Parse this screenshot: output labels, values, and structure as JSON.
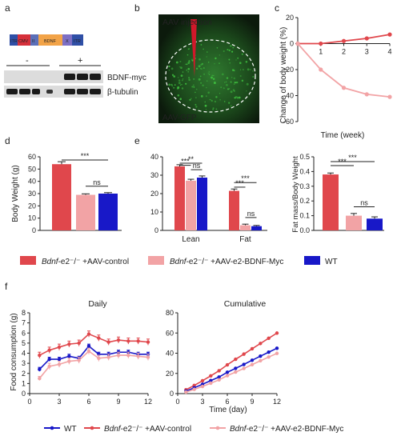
{
  "panel_labels": {
    "a": "a",
    "b": "b",
    "c": "c",
    "d": "d",
    "e": "e",
    "f": "f"
  },
  "colors": {
    "control": "#e0474c",
    "e2bdnf": "#f2a3a5",
    "wt": "#1818c8",
    "text": "#222222",
    "micro_bg": "#0c1a0c",
    "micro_cell": "#3fbf3f",
    "micro_needle": "#d0182a",
    "itr": "#2f4fa6",
    "cmv": "#d6303a",
    "ii": "#5b6fb8",
    "bdnf": "#f2a347",
    "x": "#7d6fc4",
    "blot_band": "#1a1a1a"
  },
  "panel_a": {
    "construct": [
      "ITR",
      "CMV",
      "II",
      "BDNF",
      "X",
      "ITR"
    ],
    "lane_minus": "-",
    "lane_plus": "+",
    "blot_labels": [
      "BDNF-myc",
      "β-tubulin"
    ]
  },
  "panel_b": {
    "injection_label": "AAV injection",
    "gfp_label": "AAV-GFP"
  },
  "legend": {
    "control_gene": "Bdnf",
    "control_rest": "-e2⁻/⁻ +AAV-control",
    "e2_gene": "Bdnf",
    "e2_rest": "-e2⁻/⁻ +AAV-e2-BDNF-Myc",
    "wt": "WT"
  },
  "legend_f": {
    "wt": "WT",
    "control_gene": "Bdnf",
    "control_rest": "-e2⁻/⁻ +AAV-control",
    "e2_gene": "Bdnf",
    "e2_rest": "-e2⁻/⁻ +AAV-e2-BDNF-Myc"
  },
  "chart_data": [
    {
      "panel": "c",
      "type": "line",
      "xlabel": "Time (week)",
      "ylabel": "Change of body weight (%)",
      "xlim": [
        0,
        4
      ],
      "ylim": [
        -60,
        20
      ],
      "xticks": [
        1,
        2,
        3,
        4
      ],
      "yticks": [
        20,
        0,
        -20,
        -40,
        -60
      ],
      "x": [
        0,
        1,
        2,
        3,
        4
      ],
      "series": [
        {
          "key": "control",
          "values": [
            0,
            0,
            2,
            4,
            7
          ]
        },
        {
          "key": "e2bdnf",
          "values": [
            0,
            -20,
            -34,
            -39,
            -41
          ]
        }
      ]
    },
    {
      "panel": "d",
      "type": "bar",
      "ylabel": "Body Weight (g)",
      "ylim": [
        0,
        60
      ],
      "yticks": [
        0,
        10,
        20,
        30,
        40,
        50,
        60
      ],
      "categories": [
        "Bdnf-e2-/- +AAV-control",
        "Bdnf-e2-/- +AAV-e2-BDNF-Myc",
        "WT"
      ],
      "values": [
        54,
        29,
        30
      ],
      "errors": [
        2,
        0.8,
        0.8
      ],
      "significance": [
        {
          "a": 0,
          "b": 2,
          "text": "***"
        },
        {
          "a": 1,
          "b": 2,
          "text": "ns"
        }
      ]
    },
    {
      "panel": "e-left",
      "type": "bar",
      "ylim": [
        0,
        40
      ],
      "yticks": [
        0,
        10,
        20,
        30,
        40
      ],
      "categories": [
        "Lean",
        "Fat"
      ],
      "series": [
        {
          "key": "control",
          "values": [
            34.8,
            21.5
          ],
          "errors": [
            0.9,
            1.0
          ]
        },
        {
          "key": "e2bdnf",
          "values": [
            27,
            2.8
          ],
          "errors": [
            0.8,
            0.6
          ]
        },
        {
          "key": "wt",
          "values": [
            28.7,
            2.3
          ],
          "errors": [
            0.9,
            0.4
          ]
        }
      ],
      "significance": [
        {
          "group": 0,
          "a": 0,
          "b": 2,
          "text": "**"
        },
        {
          "group": 0,
          "a": 0,
          "b": 1,
          "text": "***"
        },
        {
          "group": 0,
          "a": 1,
          "b": 2,
          "text": "ns"
        },
        {
          "group": 1,
          "a": 0,
          "b": 2,
          "text": "***"
        },
        {
          "group": 1,
          "a": 0,
          "b": 1,
          "text": "***"
        },
        {
          "group": 1,
          "a": 1,
          "b": 2,
          "text": "ns"
        }
      ]
    },
    {
      "panel": "e-right",
      "type": "bar",
      "ylabel": "Fat mass/Body Weight",
      "ylim": [
        0,
        0.5
      ],
      "yticks": [
        0.0,
        0.1,
        0.2,
        0.3,
        0.4,
        0.5
      ],
      "series": [
        {
          "key": "control",
          "values": [
            0.38
          ],
          "errors": [
            0.01
          ]
        },
        {
          "key": "e2bdnf",
          "values": [
            0.1
          ],
          "errors": [
            0.015
          ]
        },
        {
          "key": "wt",
          "values": [
            0.08
          ],
          "errors": [
            0.012
          ]
        }
      ],
      "significance": [
        {
          "a": 0,
          "b": 2,
          "text": "***"
        },
        {
          "a": 0,
          "b": 1,
          "text": "***"
        },
        {
          "a": 1,
          "b": 2,
          "text": "ns"
        }
      ]
    },
    {
      "panel": "f-daily",
      "type": "line",
      "title": "Daily",
      "xlabel": "",
      "ylabel": "Food consumption (g)",
      "xlim": [
        0,
        12
      ],
      "ylim": [
        0,
        8
      ],
      "xticks": [
        0,
        3,
        6,
        9,
        12
      ],
      "yticks": [
        0,
        1,
        2,
        3,
        4,
        5,
        6,
        7,
        8
      ],
      "x": [
        1,
        2,
        3,
        4,
        5,
        6,
        7,
        8,
        9,
        10,
        11,
        12
      ],
      "series": [
        {
          "key": "control",
          "values": [
            3.8,
            4.3,
            4.6,
            4.9,
            5.0,
            5.9,
            5.5,
            5.1,
            5.3,
            5.2,
            5.2,
            5.1
          ],
          "errors": [
            0.3,
            0.3,
            0.3,
            0.3,
            0.3,
            0.3,
            0.3,
            0.3,
            0.3,
            0.3,
            0.3,
            0.3
          ]
        },
        {
          "key": "wt",
          "values": [
            2.4,
            3.4,
            3.4,
            3.7,
            3.5,
            4.7,
            3.9,
            3.9,
            4.1,
            4.1,
            3.9,
            3.9
          ],
          "errors": [
            0.2,
            0.2,
            0.2,
            0.2,
            0.2,
            0.2,
            0.2,
            0.2,
            0.2,
            0.2,
            0.2,
            0.2
          ]
        },
        {
          "key": "e2bdnf",
          "values": [
            1.5,
            2.7,
            2.9,
            3.2,
            3.3,
            4.2,
            3.5,
            3.6,
            3.8,
            3.8,
            3.7,
            3.6
          ],
          "errors": [
            0.2,
            0.3,
            0.3,
            0.3,
            0.3,
            0.3,
            0.3,
            0.3,
            0.3,
            0.3,
            0.3,
            0.3
          ]
        }
      ]
    },
    {
      "panel": "f-cumulative",
      "type": "line",
      "title": "Cumulative",
      "xlabel": "Time (day)",
      "ylabel": "",
      "xlim": [
        0,
        12
      ],
      "ylim": [
        0,
        80
      ],
      "xticks": [
        0,
        3,
        6,
        9,
        12
      ],
      "yticks": [
        0,
        20,
        40,
        60,
        80
      ],
      "x": [
        1,
        2,
        3,
        4,
        5,
        6,
        7,
        8,
        9,
        10,
        11,
        12
      ],
      "series": [
        {
          "key": "control",
          "values": [
            3.8,
            8.1,
            12.7,
            17.6,
            22.6,
            28.5,
            34,
            39.1,
            44.4,
            49.6,
            54.8,
            59.9
          ]
        },
        {
          "key": "wt",
          "values": [
            2.4,
            5.8,
            9.2,
            12.9,
            16.4,
            21.1,
            25,
            28.9,
            33,
            37.1,
            41,
            44.9
          ]
        },
        {
          "key": "e2bdnf",
          "values": [
            1.5,
            4.2,
            7.1,
            10.3,
            13.6,
            17.8,
            21.3,
            24.9,
            28.7,
            32.5,
            36.2,
            39.8
          ]
        }
      ]
    }
  ]
}
